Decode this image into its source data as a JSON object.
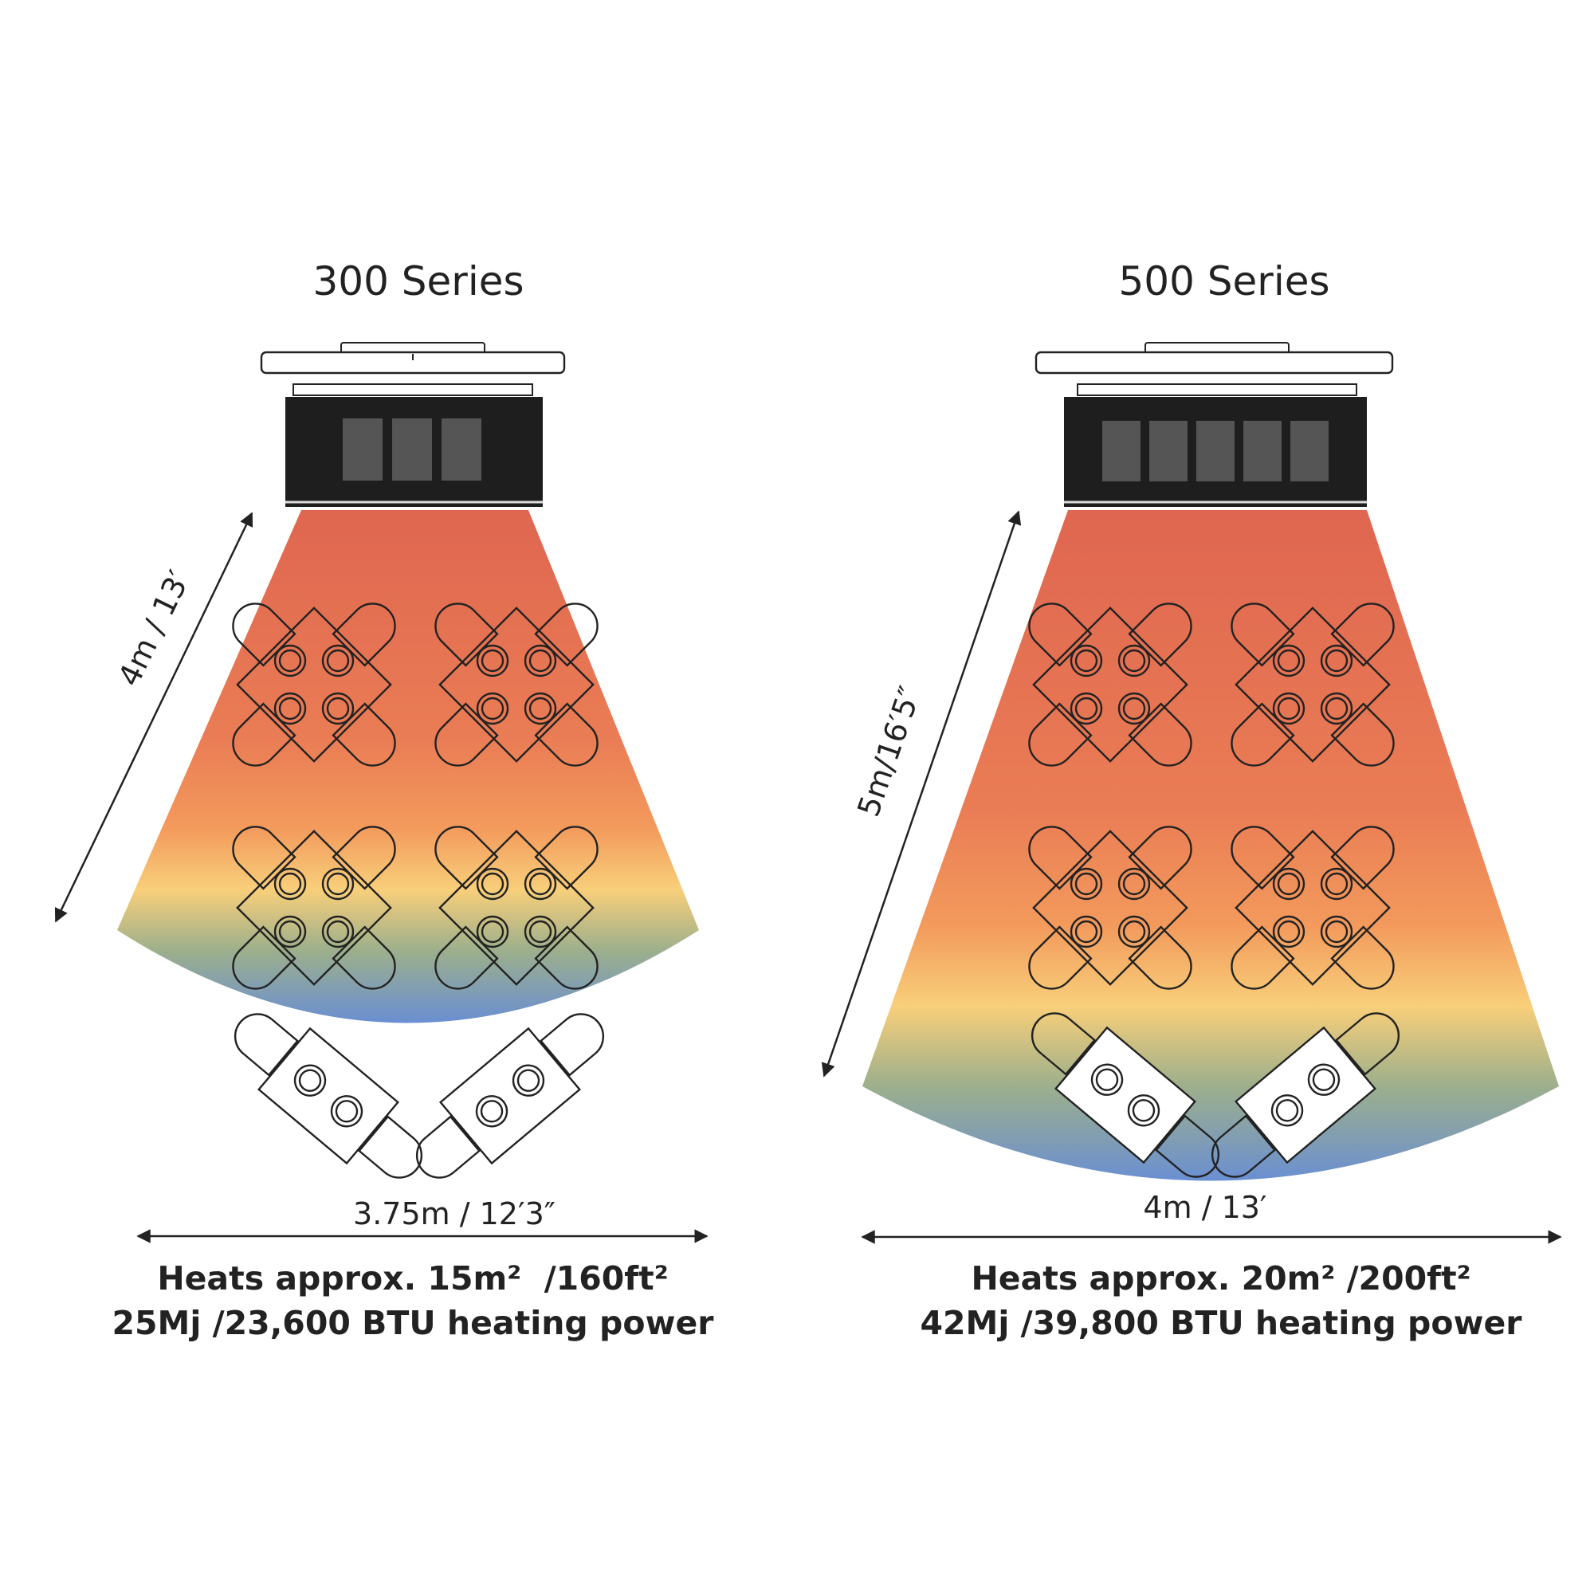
{
  "panels": [
    {
      "title": "300 Series",
      "depth_label": "4m / 13′",
      "width_label": "3.75m / 12′3″",
      "area_line": "Heats approx. 15m²  /160ft²",
      "power_line": "25Mj /23,600 BTU heating power"
    },
    {
      "title": "500 Series",
      "depth_label": "5m/16′5″",
      "width_label": "4m / 13′",
      "area_line": "Heats approx. 20m² /200ft²",
      "power_line": "42Mj /39,800 BTU heating power"
    }
  ]
}
